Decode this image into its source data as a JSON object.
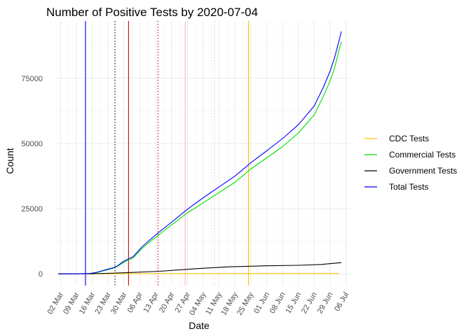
{
  "chart_data": {
    "type": "line",
    "title": "Number of Positive Tests by  2020-07-04",
    "xlabel": "Date",
    "ylabel": "Count",
    "x_ticks": [
      "02 Mar",
      "09 Mar",
      "16 Mar",
      "23 Mar",
      "30 Mar",
      "06 Apr",
      "13 Apr",
      "20 Apr",
      "27 Apr",
      "04 May",
      "11 May",
      "18 May",
      "25 May",
      "01 Jun",
      "08 Jun",
      "15 Jun",
      "22 Jun",
      "29 Jun",
      "06 Jul"
    ],
    "y_ticks": [
      0,
      25000,
      50000,
      75000
    ],
    "y_tick_labels": [
      "0",
      "25000",
      "50000",
      "75000"
    ],
    "xlim": [
      "2020-02-29",
      "2020-07-08"
    ],
    "ylim": [
      -4500,
      97000
    ],
    "grid": true,
    "legend_position": "right",
    "series": [
      {
        "name": "CDC Tests",
        "color": "#FFC000",
        "points": [
          [
            "2020-03-01",
            0
          ],
          [
            "2020-03-15",
            20
          ],
          [
            "2020-04-01",
            60
          ],
          [
            "2020-05-01",
            100
          ],
          [
            "2020-06-01",
            120
          ],
          [
            "2020-07-03",
            130
          ]
        ]
      },
      {
        "name": "Commercial Tests",
        "color": "#00E000",
        "points": [
          [
            "2020-03-01",
            0
          ],
          [
            "2020-03-10",
            20
          ],
          [
            "2020-03-15",
            100
          ],
          [
            "2020-03-18",
            500
          ],
          [
            "2020-03-22",
            1400
          ],
          [
            "2020-03-25",
            2100
          ],
          [
            "2020-03-27",
            2800
          ],
          [
            "2020-03-30",
            4500
          ],
          [
            "2020-04-03",
            6100
          ],
          [
            "2020-04-07",
            9800
          ],
          [
            "2020-04-10",
            12000
          ],
          [
            "2020-04-15",
            15400
          ],
          [
            "2020-04-20",
            18800
          ],
          [
            "2020-04-27",
            23400
          ],
          [
            "2020-05-04",
            27300
          ],
          [
            "2020-05-11",
            31200
          ],
          [
            "2020-05-18",
            35100
          ],
          [
            "2020-05-25",
            40200
          ],
          [
            "2020-06-01",
            44500
          ],
          [
            "2020-06-08",
            48800
          ],
          [
            "2020-06-15",
            54000
          ],
          [
            "2020-06-22",
            61000
          ],
          [
            "2020-06-26",
            68000
          ],
          [
            "2020-06-29",
            74000
          ],
          [
            "2020-07-01",
            79000
          ],
          [
            "2020-07-03",
            86000
          ],
          [
            "2020-07-04",
            89000
          ]
        ]
      },
      {
        "name": "Government Tests",
        "color": "#000000",
        "points": [
          [
            "2020-03-01",
            0
          ],
          [
            "2020-03-15",
            40
          ],
          [
            "2020-03-22",
            200
          ],
          [
            "2020-04-01",
            500
          ],
          [
            "2020-04-15",
            1000
          ],
          [
            "2020-05-01",
            2000
          ],
          [
            "2020-05-15",
            2700
          ],
          [
            "2020-06-01",
            3100
          ],
          [
            "2020-06-15",
            3300
          ],
          [
            "2020-06-25",
            3600
          ],
          [
            "2020-07-04",
            4300
          ]
        ]
      },
      {
        "name": "Total Tests",
        "color": "#0000FF",
        "points": [
          [
            "2020-03-01",
            0
          ],
          [
            "2020-03-10",
            30
          ],
          [
            "2020-03-15",
            150
          ],
          [
            "2020-03-18",
            600
          ],
          [
            "2020-03-22",
            1600
          ],
          [
            "2020-03-25",
            2300
          ],
          [
            "2020-03-27",
            3000
          ],
          [
            "2020-03-30",
            4900
          ],
          [
            "2020-04-03",
            6600
          ],
          [
            "2020-04-07",
            10400
          ],
          [
            "2020-04-10",
            12700
          ],
          [
            "2020-04-15",
            16400
          ],
          [
            "2020-04-20",
            19800
          ],
          [
            "2020-04-27",
            24800
          ],
          [
            "2020-05-04",
            29200
          ],
          [
            "2020-05-11",
            33400
          ],
          [
            "2020-05-18",
            37500
          ],
          [
            "2020-05-25",
            42600
          ],
          [
            "2020-06-01",
            47200
          ],
          [
            "2020-06-08",
            51900
          ],
          [
            "2020-06-15",
            57200
          ],
          [
            "2020-06-22",
            64400
          ],
          [
            "2020-06-26",
            71500
          ],
          [
            "2020-06-29",
            77700
          ],
          [
            "2020-07-01",
            83000
          ],
          [
            "2020-07-03",
            89500
          ],
          [
            "2020-07-04",
            93000
          ]
        ]
      }
    ],
    "reference_lines": [
      {
        "date": "2020-03-13",
        "color": "#0000FF",
        "style": "solid"
      },
      {
        "date": "2020-03-26",
        "color": "#000000",
        "style": "dotted"
      },
      {
        "date": "2020-04-01",
        "color": "#CC0000",
        "style": "solid"
      },
      {
        "date": "2020-04-14",
        "color": "#CC0000",
        "style": "dotted"
      },
      {
        "date": "2020-04-26",
        "color": "#FFB6C1",
        "style": "solid"
      },
      {
        "date": "2020-05-09",
        "color": "#FFB6C1",
        "style": "dotted"
      },
      {
        "date": "2020-05-24",
        "color": "#FFC000",
        "style": "solid"
      }
    ]
  }
}
